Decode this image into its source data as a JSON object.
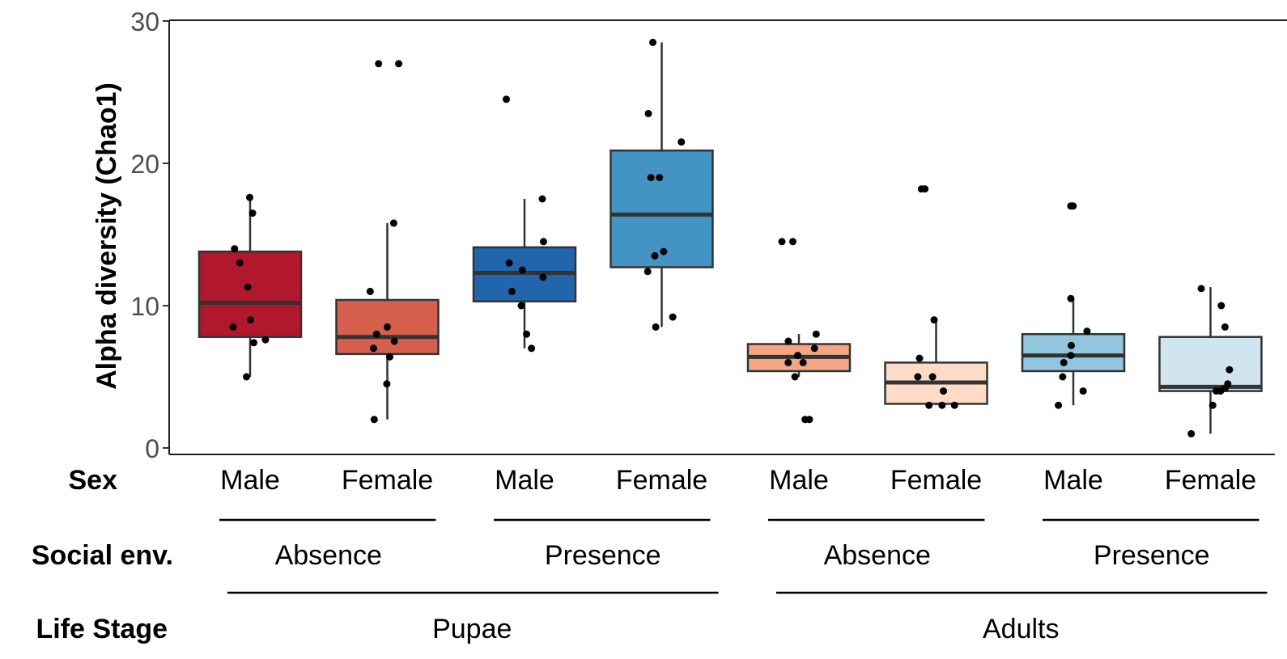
{
  "chart_data": {
    "type": "box",
    "title": "",
    "ylabel": "Alpha diversity (Chao1)",
    "ylim": [
      0,
      30
    ],
    "yticks": [
      0,
      10,
      20,
      30
    ],
    "row_labels": {
      "sex": "Sex",
      "social": "Social env.",
      "stage": "Life Stage"
    },
    "social_groups": [
      "Absence",
      "Presence",
      "Absence",
      "Presence"
    ],
    "stage_groups": [
      "Pupae",
      "Adults"
    ],
    "boxes": [
      {
        "sex": "Male",
        "social": "Absence",
        "stage": "Pupae",
        "color": "#b2182b",
        "whisker_low": 5.0,
        "q1": 7.8,
        "median": 10.2,
        "q3": 13.8,
        "whisker_high": 17.7,
        "points": [
          17.6,
          16.5,
          14.0,
          13.0,
          11.3,
          9.0,
          8.5,
          7.6,
          7.4,
          5.0
        ]
      },
      {
        "sex": "Female",
        "social": "Absence",
        "stage": "Pupae",
        "color": "#d6604d",
        "whisker_low": 2.0,
        "q1": 6.6,
        "median": 7.8,
        "q3": 10.4,
        "whisker_high": 15.8,
        "points": [
          27.0,
          27.0,
          15.8,
          11.0,
          8.5,
          8.0,
          7.5,
          7.0,
          6.4,
          4.5,
          2.0
        ]
      },
      {
        "sex": "Male",
        "social": "Presence",
        "stage": "Pupae",
        "color": "#2166ac",
        "whisker_low": 7.0,
        "q1": 10.3,
        "median": 12.3,
        "q3": 14.1,
        "whisker_high": 17.5,
        "points": [
          24.5,
          17.5,
          14.5,
          13.0,
          12.5,
          12.0,
          11.0,
          10.0,
          8.0,
          7.0
        ]
      },
      {
        "sex": "Female",
        "social": "Presence",
        "stage": "Pupae",
        "color": "#4393c3",
        "whisker_low": 8.5,
        "q1": 12.7,
        "median": 16.4,
        "q3": 20.9,
        "whisker_high": 28.5,
        "points": [
          28.5,
          23.5,
          21.5,
          19.0,
          19.0,
          13.8,
          13.5,
          12.4,
          9.2,
          8.5
        ]
      },
      {
        "sex": "Male",
        "social": "Absence",
        "stage": "Adults",
        "color": "#f4a582",
        "whisker_low": 5.0,
        "q1": 5.4,
        "median": 6.4,
        "q3": 7.3,
        "whisker_high": 8.0,
        "points": [
          14.5,
          14.5,
          8.0,
          7.5,
          7.0,
          6.5,
          6.0,
          6.0,
          5.0,
          2.0,
          2.0
        ]
      },
      {
        "sex": "Female",
        "social": "Absence",
        "stage": "Adults",
        "color": "#fddbc7",
        "whisker_low": 3.0,
        "q1": 3.1,
        "median": 4.6,
        "q3": 6.0,
        "whisker_high": 9.0,
        "points": [
          18.2,
          18.2,
          9.0,
          6.3,
          5.0,
          5.0,
          4.0,
          3.0,
          3.0,
          3.0
        ]
      },
      {
        "sex": "Male",
        "social": "Presence",
        "stage": "Adults",
        "color": "#92c5de",
        "whisker_low": 3.0,
        "q1": 5.4,
        "median": 6.5,
        "q3": 8.0,
        "whisker_high": 10.5,
        "points": [
          17.0,
          17.0,
          10.5,
          8.2,
          7.2,
          6.5,
          6.0,
          5.0,
          4.0,
          3.0
        ]
      },
      {
        "sex": "Female",
        "social": "Presence",
        "stage": "Adults",
        "color": "#d1e5f0",
        "whisker_low": 1.0,
        "q1": 4.0,
        "median": 4.3,
        "q3": 7.8,
        "whisker_high": 11.3,
        "points": [
          11.2,
          10.0,
          8.5,
          5.5,
          4.5,
          4.2,
          4.0,
          4.0,
          3.0,
          1.0
        ]
      }
    ]
  }
}
